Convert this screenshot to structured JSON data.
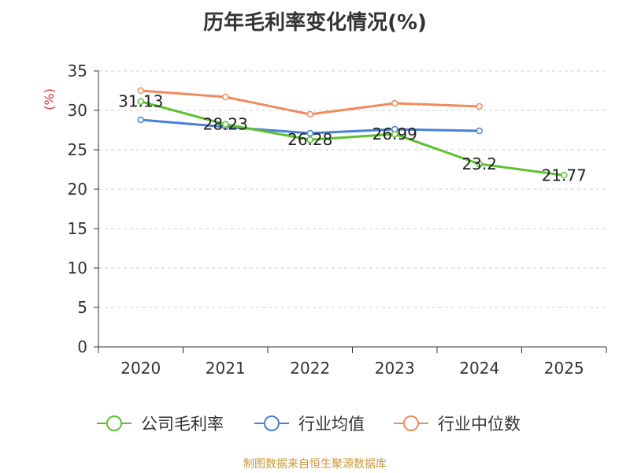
{
  "chart_data": {
    "type": "line",
    "title": "历年毛利率变化情况(%)",
    "ylabel": "(%)",
    "xlabel": "",
    "categories": [
      "2020",
      "2021",
      "2022",
      "2023",
      "2024",
      "2025"
    ],
    "ylim": [
      0,
      35
    ],
    "yticks": [
      0,
      5,
      10,
      15,
      20,
      25,
      30,
      35
    ],
    "grid": true,
    "legend_position": "bottom",
    "series": [
      {
        "name": "公司毛利率",
        "color": "#5cc12f",
        "values": [
          31.13,
          28.23,
          26.28,
          26.99,
          23.2,
          21.77
        ],
        "labels": [
          "31.13",
          "28.23",
          "26.28",
          "26.99",
          "23.2",
          "21.77"
        ]
      },
      {
        "name": "行业均值",
        "color": "#4a7fd8",
        "values": [
          28.8,
          27.9,
          27.1,
          27.6,
          27.4,
          null
        ]
      },
      {
        "name": "行业中位数",
        "color": "#f08a5d",
        "values": [
          32.5,
          31.7,
          29.5,
          30.9,
          30.5,
          null
        ]
      }
    ]
  },
  "ylabel_color": "#e03030",
  "source": "制图数据来自恒生聚源数据库"
}
